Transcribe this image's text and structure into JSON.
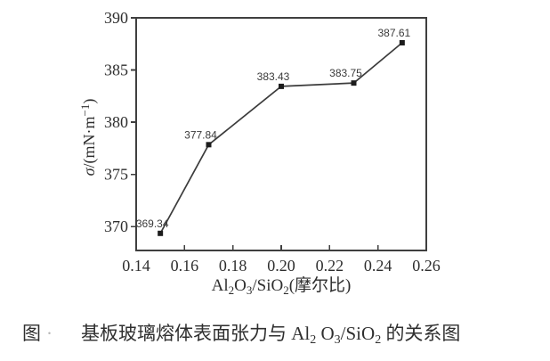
{
  "chart_data": {
    "type": "line",
    "title": "",
    "x": [
      0.15,
      0.17,
      0.2,
      0.23,
      0.25
    ],
    "y": [
      369.34,
      377.84,
      383.43,
      383.75,
      387.61
    ],
    "point_labels": [
      "369.34",
      "377.84",
      "383.43",
      "383.75",
      "387.61"
    ],
    "xlabel": "Al₂O₃/SiO₂(摩尔比)",
    "ylabel": "σ/(mN·m⁻¹)",
    "xlim": [
      0.14,
      0.26
    ],
    "ylim": [
      367.7,
      390
    ],
    "x_ticks": [
      0.14,
      0.16,
      0.18,
      0.2,
      0.22,
      0.24,
      0.26
    ],
    "x_tick_labels": [
      "0.14",
      "0.16",
      "0.18",
      "0.20",
      "0.22",
      "0.24",
      "0.26"
    ],
    "y_ticks": [
      370,
      375,
      380,
      385,
      390
    ],
    "y_tick_labels": [
      "370",
      "375",
      "380",
      "385",
      "390"
    ],
    "grid": false,
    "legend": false,
    "marker": "filled-square",
    "line_color": "#3c3c3c",
    "marker_color": "#1c1c1c",
    "frame_color": "#3f3f3f",
    "label_color": "#3a3a3a"
  },
  "axis_labels": {
    "y_sigma": "σ",
    "y_main": "/(mN·m",
    "y_sup": "−1",
    "y_close": ")",
    "x_p1": "Al",
    "x_s1": "2",
    "x_p2": "O",
    "x_s2": "3",
    "x_p3": "/SiO",
    "x_s3": "2",
    "x_p4": "(摩尔比)"
  },
  "caption": {
    "prefix": "图",
    "mark": "·",
    "body": [
      {
        "text": "基板玻璃熔体表面张力与 Al"
      },
      {
        "sub": "2"
      },
      {
        "text": " O"
      },
      {
        "sub": "3"
      },
      {
        "text": "/SiO"
      },
      {
        "sub": "2"
      },
      {
        "text": " 的关系图"
      }
    ]
  }
}
